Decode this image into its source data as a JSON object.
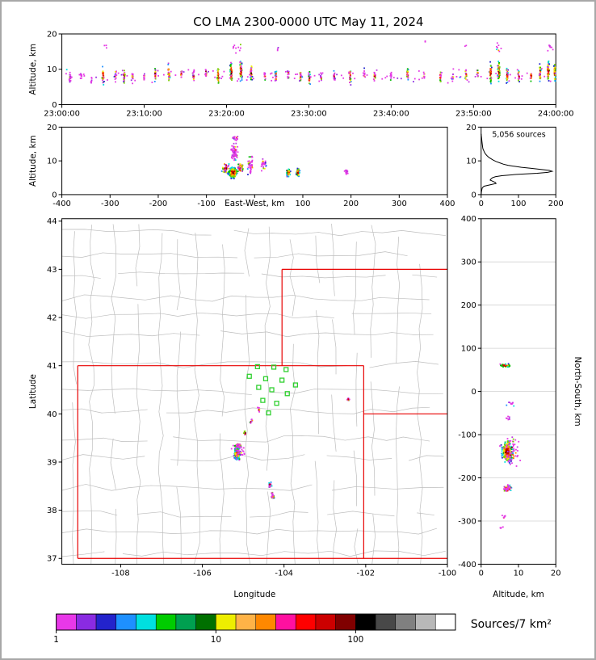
{
  "chart_data": {
    "type": "scatter",
    "title": "CO LMA 2300-0000 UTC May 11, 2024",
    "panels": {
      "time_height": {
        "ylabel": "Altitude, km",
        "xlim": [
          0,
          3600
        ],
        "ylim": [
          0,
          20
        ],
        "xticks": [
          [
            0,
            "23:00:00"
          ],
          [
            600,
            "23:10:00"
          ],
          [
            1200,
            "23:20:00"
          ],
          [
            1800,
            "23:30:00"
          ],
          [
            2400,
            "23:40:00"
          ],
          [
            3000,
            "23:50:00"
          ],
          [
            3600,
            "24:00:00"
          ]
        ],
        "yticks": [
          [
            0,
            "0"
          ],
          [
            10,
            "10"
          ],
          [
            20,
            "20"
          ]
        ],
        "clusters": [
          [
            60,
            7.5,
            8,
            1.8,
            16,
            0.2
          ],
          [
            140,
            8,
            7,
            1.6,
            9,
            0
          ],
          [
            215,
            7,
            7,
            1.4,
            7,
            0
          ],
          [
            300,
            8,
            9,
            2.6,
            28,
            0.8
          ],
          [
            390,
            8.5,
            7,
            1.7,
            11,
            0.2
          ],
          [
            455,
            8,
            8,
            2.3,
            22,
            0.7
          ],
          [
            515,
            8,
            7,
            1.5,
            13,
            0.3
          ],
          [
            600,
            8,
            7,
            1.8,
            9,
            0.2
          ],
          [
            680,
            8.5,
            8,
            2.1,
            20,
            0.6
          ],
          [
            780,
            9,
            8,
            3.0,
            28,
            0.8
          ],
          [
            870,
            8.5,
            7,
            1.7,
            13,
            0.3
          ],
          [
            960,
            8,
            8,
            2.0,
            18,
            0.5
          ],
          [
            1050,
            9,
            7,
            1.9,
            15,
            0.4
          ],
          [
            1140,
            8,
            9,
            2.8,
            28,
            0.8
          ],
          [
            1235,
            9,
            10,
            3.2,
            42,
            0.9
          ],
          [
            1305,
            9.5,
            10,
            3.4,
            52,
            0.9
          ],
          [
            1380,
            9,
            9,
            2.8,
            32,
            0.8
          ],
          [
            1480,
            8.5,
            7,
            1.7,
            11,
            0.2
          ],
          [
            1560,
            8,
            8,
            2.1,
            22,
            0.6
          ],
          [
            1650,
            8.5,
            7,
            1.7,
            13,
            0.3
          ],
          [
            1740,
            8,
            7,
            1.9,
            16,
            0.4
          ],
          [
            1805,
            7.5,
            8,
            2.2,
            22,
            0.7
          ],
          [
            1890,
            8,
            7,
            1.5,
            11,
            0.2
          ],
          [
            1985,
            8,
            7,
            1.9,
            14,
            0.3
          ],
          [
            2100,
            8,
            9,
            2.4,
            28,
            0.8
          ],
          [
            2205,
            8.5,
            7,
            1.6,
            9,
            0.2
          ],
          [
            2280,
            8,
            8,
            2.0,
            16,
            0.5
          ],
          [
            2400,
            8,
            7,
            1.5,
            9,
            0.2
          ],
          [
            2520,
            8.5,
            8,
            2.1,
            20,
            0.6
          ],
          [
            2640,
            8,
            7,
            1.6,
            9,
            0.2
          ],
          [
            2760,
            8,
            8,
            2.0,
            16,
            0.5
          ],
          [
            2850,
            8,
            7,
            1.5,
            9,
            0.2
          ],
          [
            2945,
            8.5,
            8,
            2.1,
            18,
            0.6
          ],
          [
            3030,
            8.5,
            7,
            1.7,
            11,
            0.2
          ],
          [
            3125,
            9,
            9,
            3.0,
            36,
            0.9
          ],
          [
            3185,
            9.5,
            9,
            3.2,
            46,
            0.9
          ],
          [
            3245,
            8.5,
            8,
            2.6,
            32,
            0.8
          ],
          [
            3330,
            8,
            8,
            2.0,
            18,
            0.5
          ],
          [
            3420,
            8,
            7,
            1.8,
            14,
            0.4
          ],
          [
            3485,
            9,
            8,
            2.6,
            28,
            0.8
          ],
          [
            3545,
            9.5,
            9,
            3.2,
            46,
            0.9
          ],
          [
            3592,
            9,
            7,
            3.0,
            40,
            0.9
          ],
          [
            1280,
            16,
            60,
            1.5,
            10,
            0.1
          ],
          [
            3180,
            16,
            40,
            1.5,
            8,
            0.1
          ],
          [
            3560,
            16,
            30,
            1.5,
            8,
            0.1
          ],
          [
            320,
            17,
            15,
            1,
            3,
            0
          ],
          [
            2650,
            18,
            10,
            0.8,
            2,
            0
          ],
          [
            1570,
            16,
            10,
            1,
            3,
            0
          ],
          [
            2940,
            17,
            10,
            1,
            2,
            0
          ],
          [
            1800,
            8,
            1800,
            2.4,
            120,
            0.03,
            "u"
          ]
        ]
      },
      "east_west": {
        "xlabel": "East-West, km",
        "ylabel": "Altitude, km",
        "xlim": [
          -400,
          400
        ],
        "ylim": [
          0,
          20
        ],
        "xticks": [
          [
            -400,
            "-400"
          ],
          [
            -300,
            "-300"
          ],
          [
            -200,
            "-200"
          ],
          [
            -100,
            "-100"
          ],
          [
            0,
            ""
          ],
          [
            100,
            "100"
          ],
          [
            200,
            "200"
          ],
          [
            300,
            "300"
          ],
          [
            400,
            "400"
          ]
        ],
        "yticks": [
          [
            0,
            "0"
          ],
          [
            10,
            "10"
          ],
          [
            20,
            "20"
          ]
        ],
        "clusters": [
          [
            -60,
            8,
            10,
            2.4,
            40,
            0.5
          ],
          [
            -45,
            6.5,
            10,
            1.7,
            200,
            1
          ],
          [
            -42,
            12.5,
            9,
            2.6,
            65,
            0.15
          ],
          [
            -40,
            16.5,
            8,
            1.2,
            12,
            0.05
          ],
          [
            -30,
            8,
            7,
            2.0,
            35,
            0.6
          ],
          [
            -8,
            9,
            9,
            2.8,
            40,
            0.25
          ],
          [
            18,
            9,
            7,
            2.2,
            26,
            0.3
          ],
          [
            70,
            6.5,
            4,
            1.3,
            50,
            1
          ],
          [
            90,
            6.5,
            4,
            1.3,
            50,
            1
          ],
          [
            190,
            6.5,
            5,
            0.9,
            13,
            0.05
          ]
        ]
      },
      "histogram": {
        "annotation": "5,056 sources",
        "xlim": [
          0,
          200
        ],
        "ylim": [
          0,
          20
        ],
        "xticks": [
          [
            0,
            "0"
          ],
          [
            100,
            "100"
          ],
          [
            200,
            "200"
          ]
        ],
        "yticks": [
          [
            0,
            "0"
          ],
          [
            10,
            "10"
          ],
          [
            20,
            "20"
          ]
        ],
        "profile": [
          [
            0,
            0
          ],
          [
            1,
            1
          ],
          [
            1.5,
            2
          ],
          [
            2,
            3
          ],
          [
            2.5,
            8
          ],
          [
            3,
            28
          ],
          [
            3.3,
            40
          ],
          [
            3.6,
            38
          ],
          [
            4,
            30
          ],
          [
            4.3,
            24
          ],
          [
            4.6,
            26
          ],
          [
            5,
            30
          ],
          [
            5.3,
            38
          ],
          [
            5.6,
            55
          ],
          [
            6,
            95
          ],
          [
            6.3,
            150
          ],
          [
            6.6,
            178
          ],
          [
            6.9,
            190
          ],
          [
            7.2,
            182
          ],
          [
            7.5,
            158
          ],
          [
            7.8,
            132
          ],
          [
            8.1,
            108
          ],
          [
            8.4,
            88
          ],
          [
            8.7,
            72
          ],
          [
            9,
            60
          ],
          [
            9.4,
            50
          ],
          [
            9.8,
            40
          ],
          [
            10.2,
            33
          ],
          [
            10.6,
            27
          ],
          [
            11,
            21
          ],
          [
            11.5,
            16
          ],
          [
            12,
            12
          ],
          [
            12.5,
            9
          ],
          [
            13,
            7
          ],
          [
            13.5,
            5
          ],
          [
            14,
            4
          ],
          [
            15,
            3
          ],
          [
            16,
            2
          ],
          [
            17,
            1
          ],
          [
            18,
            0
          ]
        ]
      },
      "map": {
        "xlabel": "Longitude",
        "ylabel": "Latitude",
        "xlim": [
          -109.44,
          -100
        ],
        "ylim": [
          36.88,
          44.05
        ],
        "xticks": [
          [
            -108,
            "-108"
          ],
          [
            -106,
            "-106"
          ],
          [
            -104,
            "-104"
          ],
          [
            -102,
            "-102"
          ],
          [
            -100,
            "-100"
          ]
        ],
        "yticks": [
          [
            37,
            "37"
          ],
          [
            38,
            "38"
          ],
          [
            39,
            "39"
          ],
          [
            40,
            "40"
          ],
          [
            41,
            "41"
          ],
          [
            42,
            "42"
          ],
          [
            43,
            "43"
          ],
          [
            44,
            "44"
          ]
        ],
        "state_lines": [
          [
            [
              -109.05,
              37
            ],
            [
              -109.05,
              41
            ]
          ],
          [
            [
              -109.05,
              41
            ],
            [
              -102.05,
              41
            ]
          ],
          [
            [
              -102.05,
              37
            ],
            [
              -102.05,
              41
            ]
          ],
          [
            [
              -109.05,
              37
            ],
            [
              -100,
              37
            ]
          ],
          [
            [
              -104.05,
              41
            ],
            [
              -104.05,
              43
            ]
          ],
          [
            [
              -104.05,
              43
            ],
            [
              -100,
              43
            ]
          ],
          [
            [
              -102.05,
              40
            ],
            [
              -100,
              40
            ]
          ]
        ],
        "stations": [
          [
            -104.65,
            40.98
          ],
          [
            -104.25,
            40.97
          ],
          [
            -103.95,
            40.92
          ],
          [
            -104.85,
            40.78
          ],
          [
            -104.45,
            40.73
          ],
          [
            -104.05,
            40.7
          ],
          [
            -103.72,
            40.6
          ],
          [
            -104.62,
            40.55
          ],
          [
            -104.3,
            40.5
          ],
          [
            -103.92,
            40.42
          ],
          [
            -104.52,
            40.28
          ],
          [
            -104.18,
            40.22
          ],
          [
            -104.38,
            40.02
          ]
        ],
        "clusters": [
          [
            -105.15,
            39.17,
            0.07,
            0.13,
            240,
            1
          ],
          [
            -105.13,
            39.34,
            0.09,
            0.06,
            55,
            0.5
          ],
          [
            -105.1,
            39.25,
            0.18,
            0.25,
            40,
            0.1
          ],
          [
            -104.34,
            38.52,
            0.045,
            0.07,
            22,
            0.5
          ],
          [
            -104.28,
            38.3,
            0.045,
            0.08,
            28,
            0.5
          ],
          [
            -102.43,
            40.3,
            0.05,
            0.03,
            15,
            0.5
          ],
          [
            -104.95,
            39.6,
            0.05,
            0.07,
            9,
            0.4
          ],
          [
            -104.8,
            39.85,
            0.05,
            0.07,
            8,
            0.4
          ],
          [
            -104.63,
            40.1,
            0.05,
            0.07,
            8,
            0.4
          ]
        ]
      },
      "north_south": {
        "xlabel": "Altitude, km",
        "ylabel": "North-South, km",
        "grid": "y",
        "xlim": [
          0,
          20
        ],
        "ylim": [
          -400,
          400
        ],
        "xticks": [
          [
            0,
            "0"
          ],
          [
            10,
            "10"
          ],
          [
            20,
            "20"
          ]
        ],
        "yticks": [
          [
            -400,
            "-400"
          ],
          [
            -300,
            "-300"
          ],
          [
            -200,
            "-200"
          ],
          [
            -100,
            "-100"
          ],
          [
            0,
            "0"
          ],
          [
            100,
            "100"
          ],
          [
            200,
            "200"
          ],
          [
            300,
            "300"
          ],
          [
            400,
            "400"
          ]
        ],
        "clusters": [
          [
            7,
            -140,
            1.7,
            26,
            230,
            1
          ],
          [
            8,
            -138,
            2.8,
            40,
            70,
            0.15
          ],
          [
            7,
            -225,
            1.3,
            12,
            45,
            0.4
          ],
          [
            6.5,
            60,
            1.7,
            4,
            45,
            1
          ],
          [
            8,
            -30,
            1.4,
            6,
            10,
            0.05
          ],
          [
            7,
            -62,
            1.4,
            5,
            8,
            0.05
          ],
          [
            6,
            -290,
            1,
            6,
            7,
            0.05
          ],
          [
            5.5,
            -315,
            0.8,
            4,
            4,
            0.05
          ]
        ]
      }
    },
    "colorbar": {
      "label": "Sources/7 km²",
      "colors": [
        "#e838e8",
        "#8a2be2",
        "#2323cc",
        "#1e90ff",
        "#00e0e0",
        "#00cc00",
        "#00a050",
        "#007000",
        "#eeee00",
        "#ffb347",
        "#ff8800",
        "#ff10a0",
        "#ff0000",
        "#cc0000",
        "#800000",
        "#000000",
        "#484848",
        "#808080",
        "#b8b8b8",
        "#ffffff"
      ],
      "ticks": [
        {
          "f": 0,
          "l": "1"
        },
        {
          "f": 0.4,
          "l": "10"
        },
        {
          "f": 0.75,
          "l": "100"
        }
      ]
    }
  }
}
